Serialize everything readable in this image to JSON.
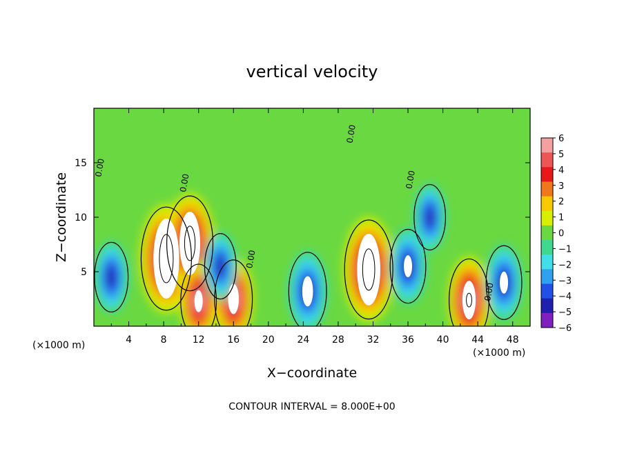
{
  "chart_data": {
    "type": "heatmap",
    "title": "vertical velocity",
    "xlabel": "X−coordinate",
    "ylabel": "Z−coordinate",
    "x_unit": "(×1000 m)",
    "xlim": [
      0,
      50
    ],
    "ylim": [
      0,
      20
    ],
    "x_ticks": [
      4,
      8,
      12,
      16,
      20,
      24,
      28,
      32,
      36,
      40,
      44,
      48
    ],
    "y_ticks": [
      5,
      10,
      15
    ],
    "footer": "CONTOUR INTERVAL = 8.000E+00",
    "contour_label": "0.00",
    "colorbar": {
      "levels": [
        6,
        5,
        4,
        3,
        2,
        1,
        0,
        -1,
        -2,
        -3,
        -4,
        -5,
        -6
      ],
      "labels": [
        "6",
        "5",
        "4",
        "3",
        "2",
        "1",
        "0",
        "−1",
        "−2",
        "−3",
        "−4",
        "−5",
        "−6"
      ],
      "colors": [
        "#f4a0a0",
        "#ee5555",
        "#e81818",
        "#f07818",
        "#f8c800",
        "#d8f000",
        "#6ad840",
        "#40d890",
        "#40e0e8",
        "#30a0f0",
        "#2050e8",
        "#2020b0",
        "#8020c0"
      ]
    },
    "features": [
      {
        "x": 8.3,
        "z": 6.2,
        "value": 14,
        "kind": "updraft"
      },
      {
        "x": 11.0,
        "z": 7.6,
        "value": 12,
        "kind": "updraft"
      },
      {
        "x": 31.5,
        "z": 5.2,
        "value": 13,
        "kind": "updraft"
      },
      {
        "x": 16.0,
        "z": 2.5,
        "value": 8,
        "kind": "updraft"
      },
      {
        "x": 43.0,
        "z": 2.4,
        "value": 9,
        "kind": "updraft"
      },
      {
        "x": 12.0,
        "z": 2.3,
        "value": 7,
        "kind": "updraft"
      },
      {
        "x": 24.5,
        "z": 3.2,
        "value": -8,
        "kind": "downdraft"
      },
      {
        "x": 47.0,
        "z": 4.0,
        "value": -7,
        "kind": "downdraft"
      },
      {
        "x": 38.5,
        "z": 10.0,
        "value": -5,
        "kind": "downdraft"
      },
      {
        "x": 2.0,
        "z": 4.5,
        "value": -6,
        "kind": "downdraft"
      },
      {
        "x": 36.0,
        "z": 5.5,
        "value": -7,
        "kind": "downdraft"
      },
      {
        "x": 14.5,
        "z": 5.5,
        "value": -5,
        "kind": "downdraft"
      }
    ]
  }
}
